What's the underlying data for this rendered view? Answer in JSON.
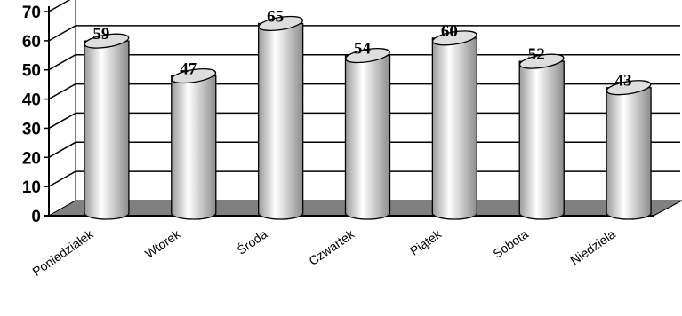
{
  "chart_data": {
    "type": "bar",
    "style": "3d-cylinder",
    "categories": [
      "Poniedziałek",
      "Wtorek",
      "Środa",
      "Czwartek",
      "Piątek",
      "Sobota",
      "Niedziela"
    ],
    "values": [
      59,
      47,
      65,
      54,
      60,
      52,
      43
    ],
    "data_labels": [
      "59",
      "47",
      "65",
      "54",
      "60",
      "52",
      "43"
    ],
    "ylim": [
      0,
      70
    ],
    "yticks": [
      "0",
      "10",
      "20",
      "30",
      "40",
      "50",
      "60",
      "70"
    ],
    "grid": true,
    "colors": {
      "bar_light": "#ffffff",
      "bar_dark": "#9a9a9a",
      "floor": "#808080",
      "grid": "#000000"
    }
  }
}
